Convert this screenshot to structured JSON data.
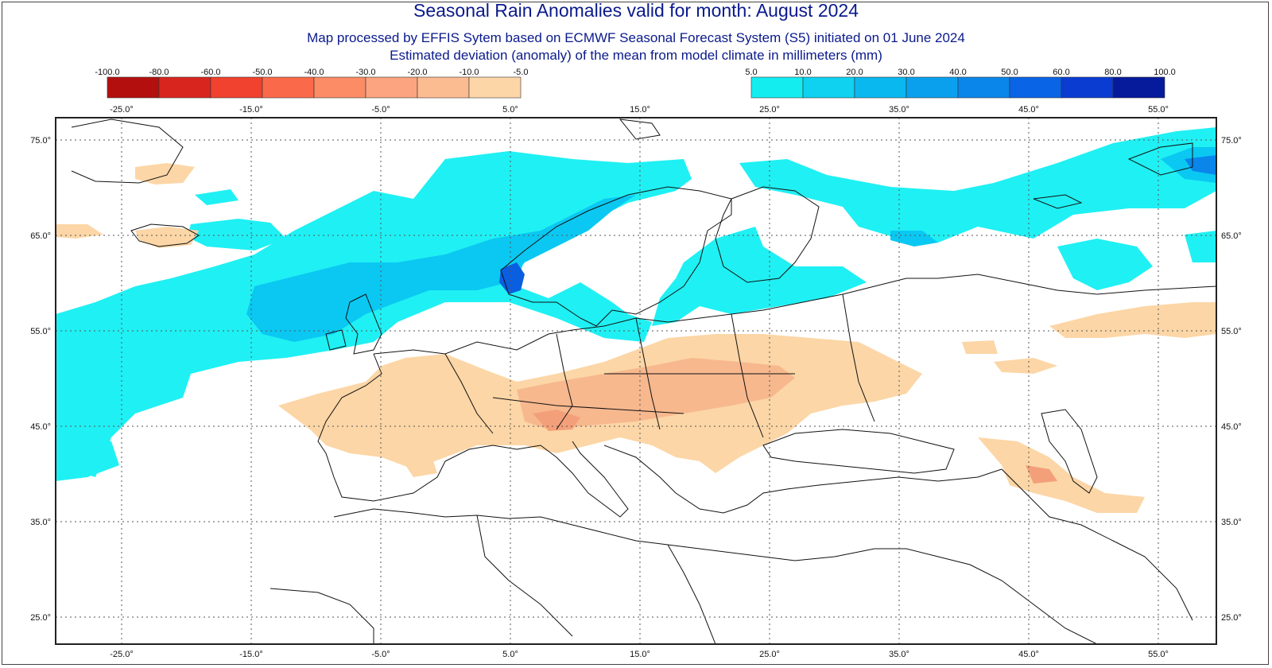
{
  "title": "Seasonal Rain Anomalies valid for month: August 2024",
  "subtitle_1": "Map processed by EFFIS Sytem based on ECMWF Seasonal Forecast System (S5) initiated on 01 June 2024",
  "subtitle_2": "Estimated deviation (anomaly) of the mean from model climate in millimeters (mm)",
  "legend_negative": {
    "labels": [
      "-100.0",
      "-80.0",
      "-60.0",
      "-50.0",
      "-40.0",
      "-30.0",
      "-20.0",
      "-10.0",
      "-5.0"
    ],
    "colors": [
      "#b40f0f",
      "#d8261e",
      "#f0422e",
      "#fa6a4a",
      "#fb8c66",
      "#fba47f",
      "#fcbc91",
      "#fdd6a8"
    ]
  },
  "legend_positive": {
    "labels": [
      "5.0",
      "10.0",
      "20.0",
      "30.0",
      "40.0",
      "50.0",
      "60.0",
      "80.0",
      "100.0"
    ],
    "colors": [
      "#14edf0",
      "#0ed2f0",
      "#0ab8f0",
      "#0aa0ee",
      "#0a86ea",
      "#0a64e6",
      "#0a3cd2",
      "#061a9c"
    ]
  },
  "longitudes": [
    "-25.0°",
    "-15.0°",
    "-5.0°",
    "5.0°",
    "15.0°",
    "25.0°",
    "35.0°",
    "45.0°",
    "55.0°"
  ],
  "latitudes": [
    "75.0°",
    "65.0°",
    "55.0°",
    "45.0°",
    "35.0°",
    "25.0°"
  ],
  "colors": {
    "title": "#0a1a8c",
    "dry": "#fcd6a6",
    "dry_strong": "#f7a77d",
    "wet": "#1ff0f3",
    "wet_mid": "#0ac8f2",
    "wet_strong": "#0a5fe0",
    "coast": "#111111"
  }
}
